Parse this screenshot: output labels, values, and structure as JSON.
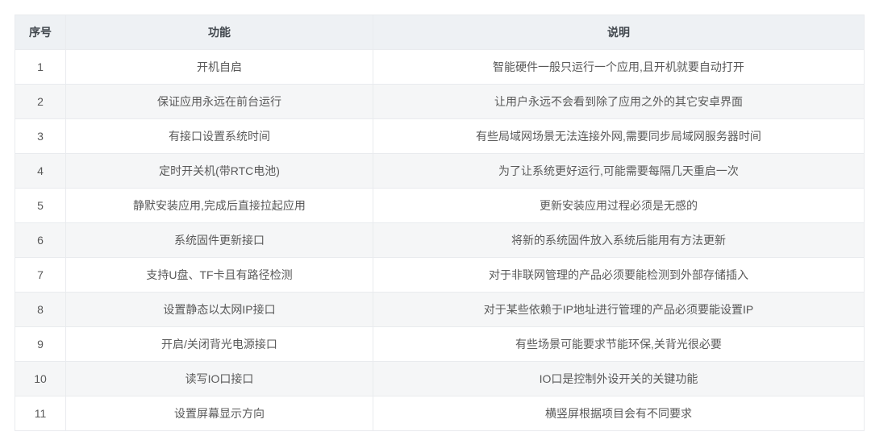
{
  "table": {
    "columns": {
      "no": "序号",
      "feature": "功能",
      "description": "说明"
    },
    "rows": [
      {
        "no": "1",
        "feature": "开机自启",
        "description": "智能硬件一般只运行一个应用,且开机就要自动打开"
      },
      {
        "no": "2",
        "feature": "保证应用永远在前台运行",
        "description": "让用户永远不会看到除了应用之外的其它安卓界面"
      },
      {
        "no": "3",
        "feature": "有接口设置系统时间",
        "description": "有些局域网场景无法连接外网,需要同步局域网服务器时间"
      },
      {
        "no": "4",
        "feature": "定时开关机(带RTC电池)",
        "description": "为了让系统更好运行,可能需要每隔几天重启一次"
      },
      {
        "no": "5",
        "feature": "静默安装应用,完成后直接拉起应用",
        "description": "更新安装应用过程必须是无感的"
      },
      {
        "no": "6",
        "feature": "系统固件更新接口",
        "description": "将新的系统固件放入系统后能用有方法更新"
      },
      {
        "no": "7",
        "feature": "支持U盘、TF卡且有路径检测",
        "description": "对于非联网管理的产品必须要能检测到外部存储插入"
      },
      {
        "no": "8",
        "feature": "设置静态以太网IP接口",
        "description": "对于某些依赖于IP地址进行管理的产品必须要能设置IP"
      },
      {
        "no": "9",
        "feature": "开启/关闭背光电源接口",
        "description": "有些场景可能要求节能环保,关背光很必要"
      },
      {
        "no": "10",
        "feature": "读写IO口接口",
        "description": "IO口是控制外设开关的关键功能"
      },
      {
        "no": "11",
        "feature": "设置屏幕显示方向",
        "description": "横竖屏根据项目会有不同要求"
      }
    ],
    "colors": {
      "header_bg": "#eef1f4",
      "even_row_bg": "#f5f6f7",
      "border": "#e9ebee",
      "header_text": "#41474d",
      "body_text": "#595959"
    }
  }
}
